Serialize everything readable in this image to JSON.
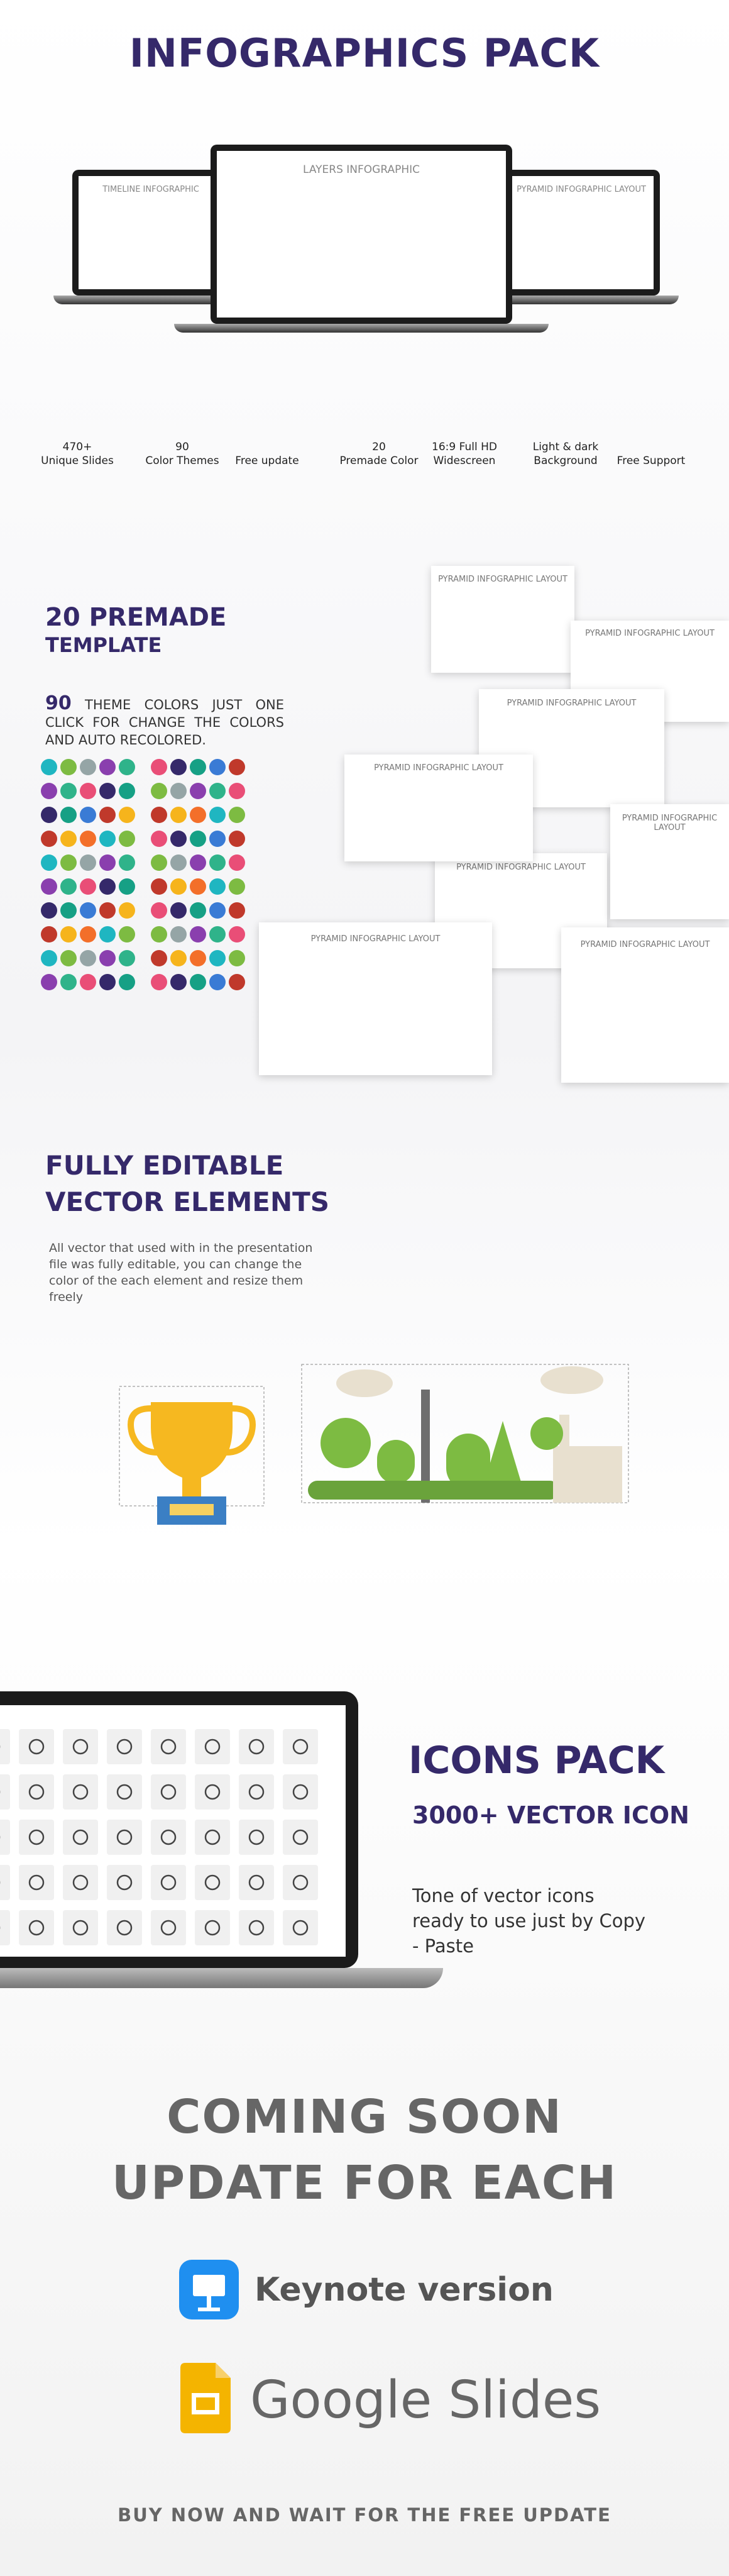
{
  "header": {
    "title": "INFOGRAPHICS PACK"
  },
  "hero": {
    "screens": [
      "TIMELINE INFOGRAPHIC",
      "LAYERS INFOGRAPHIC",
      "PYRAMID INFOGRAPHIC LAYOUT"
    ]
  },
  "features": [
    [
      "470+",
      "Unique Slides"
    ],
    [
      "90",
      "Color Themes"
    ],
    [
      "Free update"
    ],
    [
      "20",
      "Premade Color"
    ],
    [
      "16:9 Full HD",
      "Widescreen"
    ],
    [
      "Light & dark",
      "Background"
    ],
    [
      "Free Support"
    ]
  ],
  "premade": {
    "title": [
      "20 PREMADE",
      "TEMPLATE"
    ],
    "count": "90",
    "description": "THEME COLORS JUST ONE CLICK FOR CHANGE  THE COLORS AND AUTO RECOLORED.",
    "slide_title": "PYRAMID INFOGRAPHIC LAYOUT"
  },
  "vector": {
    "title": [
      "FULLY EDITABLE",
      "VECTOR ELEMENTS"
    ],
    "description": "All vector that used with in the presentation file was fully editable, you can change the color of the each element and resize them freely"
  },
  "icons": {
    "title": "ICONS PACK",
    "subtitle": "3000+ VECTOR ICON",
    "description": "Tone of vector icons ready to use just by Copy - Paste"
  },
  "coming": {
    "lines": [
      "COMING SOON",
      "UPDATE FOR EACH"
    ],
    "keynote": "Keynote version",
    "google": "Google Slides"
  },
  "footer": {
    "cta": "BUY NOW AND WAIT FOR THE FREE UPDATE"
  }
}
